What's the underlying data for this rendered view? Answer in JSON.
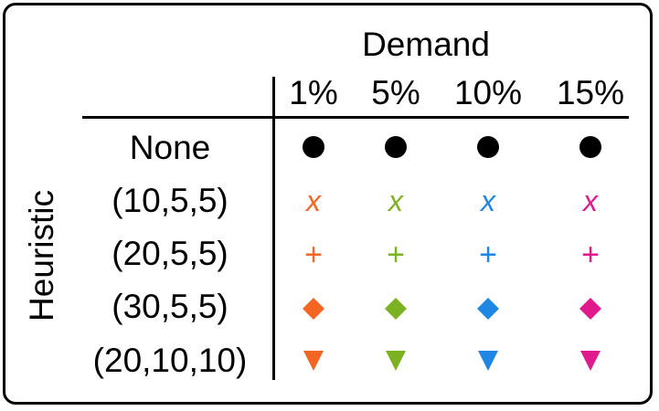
{
  "header": {
    "title": "Demand"
  },
  "axis_label": "Heuristic",
  "columns": [
    "1%",
    "5%",
    "10%",
    "15%"
  ],
  "rows": [
    "None",
    "(10,5,5)",
    "(20,5,5)",
    "(30,5,5)",
    "(20,10,10)"
  ],
  "colors": [
    "#f26522",
    "#7cb221",
    "#1f86e3",
    "#e0198c"
  ],
  "markers": {
    "none": "filled-circle",
    "r1": "x",
    "r2": "+",
    "r3": "diamond",
    "r4": "triangle-down"
  },
  "x_glyph": "x",
  "plus_glyph": "+"
}
